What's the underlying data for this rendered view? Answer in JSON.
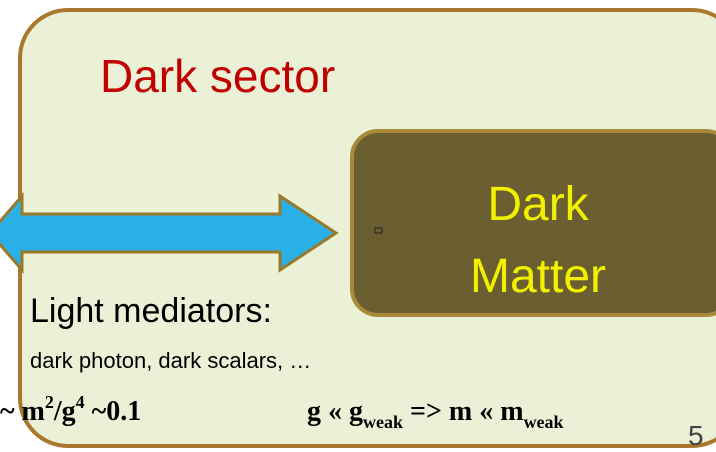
{
  "title": "Dark sector",
  "box": {
    "line1": "Dark",
    "line2": "Matter"
  },
  "mediators": {
    "heading": "Light mediators:",
    "examples": "dark photon, dark scalars, …"
  },
  "formula": {
    "left": [
      "~ m",
      "2",
      "/g",
      "4",
      " ~0.1"
    ],
    "right": [
      "g « g",
      "weak",
      " => m « m",
      "weak"
    ]
  },
  "page_number": "5"
}
